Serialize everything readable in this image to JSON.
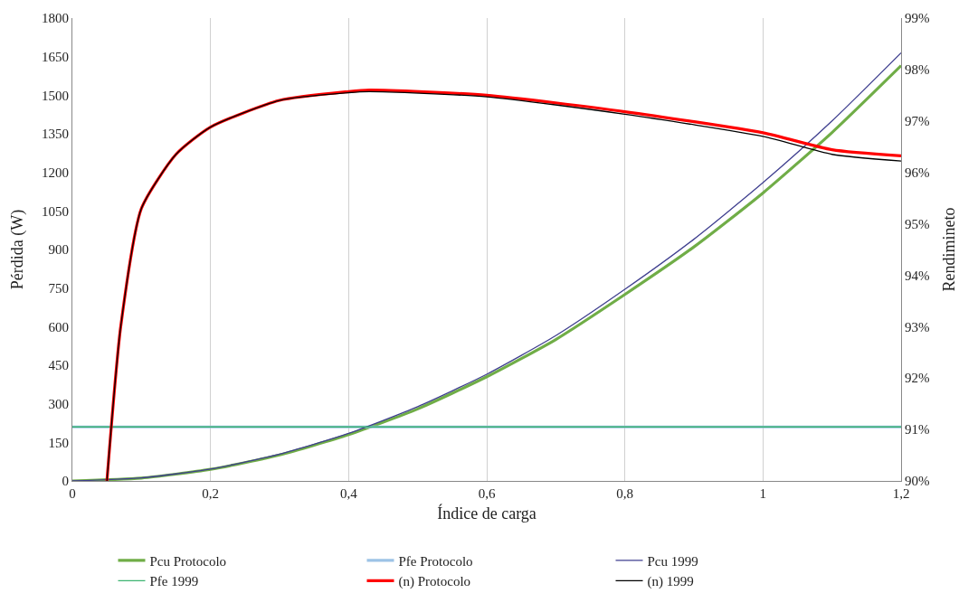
{
  "chart_data": {
    "type": "line",
    "xlabel": "Índice de carga",
    "ylabel": "Pérdida (W)",
    "y2label": "Rendimineto",
    "xlim": [
      0,
      1.2
    ],
    "xticks": [
      0,
      {
        "value": 0.2,
        "label": "0,2"
      },
      {
        "value": 0.4,
        "label": "0,4"
      },
      {
        "value": 0.6,
        "label": "0,6"
      },
      {
        "value": 0.8,
        "label": "0,8"
      },
      1,
      {
        "value": 1.2,
        "label": "1,2"
      }
    ],
    "ylim": [
      0,
      1800
    ],
    "yticks": [
      0,
      150,
      300,
      450,
      600,
      750,
      900,
      1050,
      1200,
      1350,
      1500,
      1650,
      1800
    ],
    "y2lim": [
      90,
      99
    ],
    "y2ticks": [
      {
        "value": 90,
        "label": "90%"
      },
      {
        "value": 91,
        "label": "91%"
      },
      {
        "value": 92,
        "label": "92%"
      },
      {
        "value": 93,
        "label": "93%"
      },
      {
        "value": 94,
        "label": "94%"
      },
      {
        "value": 95,
        "label": "95%"
      },
      {
        "value": 96,
        "label": "96%"
      },
      {
        "value": 97,
        "label": "97%"
      },
      {
        "value": 98,
        "label": "98%"
      },
      {
        "value": 99,
        "label": "99%"
      }
    ],
    "grid": "x",
    "legend": "bottom",
    "marker": "none",
    "line_style": "solid",
    "series": [
      {
        "name": "Pcu Protocolo",
        "color": "#70ad47",
        "x": [
          0,
          0.1,
          0.2,
          0.3,
          0.4,
          0.5,
          0.6,
          0.7,
          0.8,
          0.9,
          1.0,
          1.1,
          1.2
        ],
        "values": [
          0,
          11,
          45,
          101,
          180,
          280,
          405,
          550,
          725,
          910,
          1120,
          1355,
          1615
        ]
      },
      {
        "name": "Pfe Protocolo",
        "color": "#9dc3e6",
        "x": [
          0,
          1.2
        ],
        "values": [
          210,
          210
        ]
      },
      {
        "name": "Pcu 1999",
        "color": "#3f3f8f",
        "x": [
          0,
          0.1,
          0.2,
          0.3,
          0.4,
          0.5,
          0.6,
          0.7,
          0.8,
          0.9,
          1.0,
          1.1,
          1.2
        ],
        "values": [
          0,
          12,
          46,
          104,
          185,
          289,
          415,
          565,
          745,
          940,
          1160,
          1400,
          1665
        ]
      },
      {
        "name": "Pfe 1999",
        "color": "#3cb371",
        "x": [
          0,
          1.2
        ],
        "values": [
          210,
          210
        ]
      },
      {
        "name": "(n) Protocolo",
        "color": "#ff0000",
        "axis": "y2",
        "x": [
          0.05,
          0.07,
          0.1,
          0.15,
          0.2,
          0.3,
          0.4,
          0.43,
          0.6,
          0.8,
          1.0,
          1.1,
          1.2
        ],
        "values": [
          90,
          93.0,
          95.3,
          96.35,
          96.88,
          97.4,
          97.57,
          97.6,
          97.5,
          97.18,
          96.77,
          96.44,
          96.32
        ]
      },
      {
        "name": "(n) 1999",
        "color": "#000000",
        "axis": "y2",
        "x": [
          0.05,
          0.07,
          0.1,
          0.15,
          0.2,
          0.3,
          0.4,
          0.43,
          0.6,
          0.8,
          1.0,
          1.1,
          1.2
        ],
        "values": [
          90,
          93.0,
          95.3,
          96.35,
          96.88,
          97.4,
          97.55,
          97.57,
          97.47,
          97.13,
          96.7,
          96.35,
          96.22
        ]
      }
    ]
  }
}
